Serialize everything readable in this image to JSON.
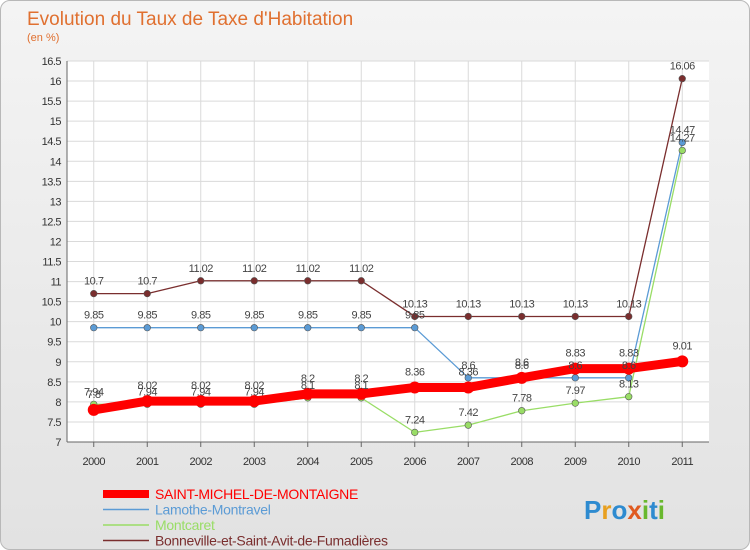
{
  "chart_data": {
    "type": "line",
    "title": "Evolution du Taux de Taxe d'Habitation",
    "subtitle": "(en %)",
    "x": [
      "2000",
      "2001",
      "2002",
      "2003",
      "2004",
      "2005",
      "2006",
      "2007",
      "2008",
      "2009",
      "2010",
      "2011"
    ],
    "ylim": [
      7,
      16.5
    ],
    "yticks": [
      "7",
      "7.5",
      "8",
      "8.5",
      "9",
      "9.5",
      "10",
      "10.5",
      "11",
      "11.5",
      "12",
      "12.5",
      "13",
      "13.5",
      "14",
      "14.5",
      "15",
      "15.5",
      "16",
      "16.5"
    ],
    "grid": true,
    "legend_position": "bottom-left",
    "series": [
      {
        "name": "SAINT-MICHEL-DE-MONTAIGNE",
        "color": "#ff0000",
        "values": [
          7.8,
          8.02,
          8.02,
          8.02,
          8.2,
          8.2,
          8.36,
          8.36,
          8.6,
          8.83,
          8.83,
          9.01
        ],
        "labels": [
          "7.8",
          "8.02",
          "8.02",
          "8.02",
          "8.2",
          "8.2",
          "8.36",
          "8.36",
          "8.6",
          "8.83",
          "8.83",
          "9.01"
        ]
      },
      {
        "name": "Lamothe-Montravel",
        "color": "#5b9bd5",
        "values": [
          9.85,
          9.85,
          9.85,
          9.85,
          9.85,
          9.85,
          9.85,
          8.6,
          8.6,
          8.6,
          8.6,
          14.47
        ],
        "labels": [
          "9.85",
          "9.85",
          "9.85",
          "9.85",
          "9.85",
          "9.85",
          "9.85",
          "8.6",
          "8.6",
          "8.6",
          "8.6",
          "14.47"
        ]
      },
      {
        "name": "Montcaret",
        "color": "#99dd66",
        "values": [
          7.94,
          7.94,
          7.94,
          7.94,
          8.1,
          8.1,
          7.24,
          7.42,
          7.78,
          7.97,
          8.13,
          14.27
        ],
        "labels": [
          "7.94",
          "7.94",
          "7.94",
          "7.94",
          "8.1",
          "8.1",
          "7.24",
          "7.42",
          "7.78",
          "7.97",
          "8.13",
          "14.27"
        ]
      },
      {
        "name": "Bonneville-et-Saint-Avit-de-Fumadières",
        "color": "#7a2e2e",
        "values": [
          10.7,
          10.7,
          11.02,
          11.02,
          11.02,
          11.02,
          10.13,
          10.13,
          10.13,
          10.13,
          10.13,
          16.06
        ],
        "labels": [
          "10.7",
          "10.7",
          "11.02",
          "11.02",
          "11.02",
          "11.02",
          "10.13",
          "10.13",
          "10.13",
          "10.13",
          "10.13",
          "16.06"
        ]
      }
    ]
  },
  "brand": {
    "letters": [
      "P",
      "r",
      "o",
      "x",
      "i",
      "t",
      "i"
    ],
    "colors": [
      "#2e8bd0",
      "#e8a020",
      "#2e8bd0",
      "#e05a20",
      "#69b82e",
      "#2e8bd0",
      "#69b82e"
    ]
  }
}
